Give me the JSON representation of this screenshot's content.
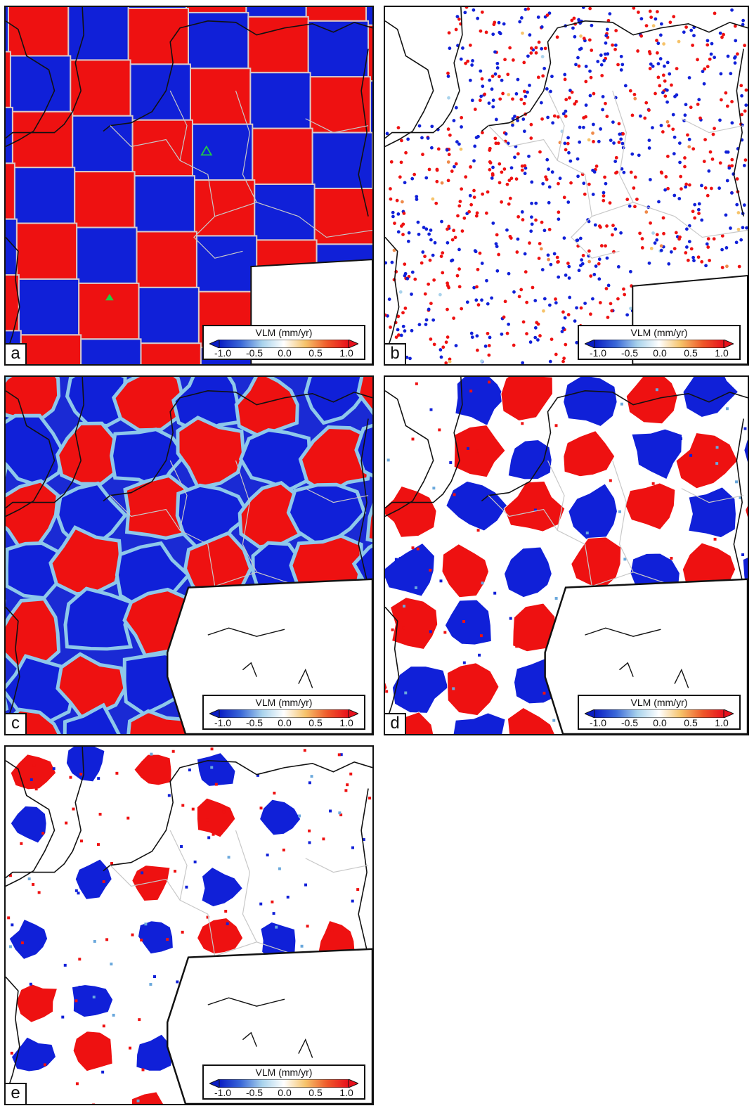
{
  "figure": {
    "panels": [
      {
        "id": "a",
        "label": "a",
        "style": "checker",
        "marker": true
      },
      {
        "id": "b",
        "label": "b",
        "style": "points"
      },
      {
        "id": "c",
        "label": "c",
        "style": "smooth",
        "inset": true
      },
      {
        "id": "d",
        "label": "d",
        "style": "blocks",
        "inset": true
      },
      {
        "id": "e",
        "label": "e",
        "style": "sparse",
        "inset": true
      }
    ],
    "colorbar": {
      "title": "VLM (mm/yr)",
      "ticks": [
        "-1.0",
        "-0.5",
        "0.0",
        "0.5",
        "1.0"
      ],
      "tick_values": [
        -1.0,
        -0.5,
        0.0,
        0.5,
        1.0
      ],
      "range": [
        -1.0,
        1.0
      ],
      "colors": [
        "#0a1cc4",
        "#3a68d8",
        "#a9d3ec",
        "#ffffff",
        "#f6c36a",
        "#ef5a2a",
        "#e8101c"
      ]
    },
    "colors": {
      "uplift": "#ee1111",
      "subsidence": "#1020d8",
      "coast": "#111111",
      "border": "#c8c8c8",
      "marker": "#22cc44"
    }
  }
}
